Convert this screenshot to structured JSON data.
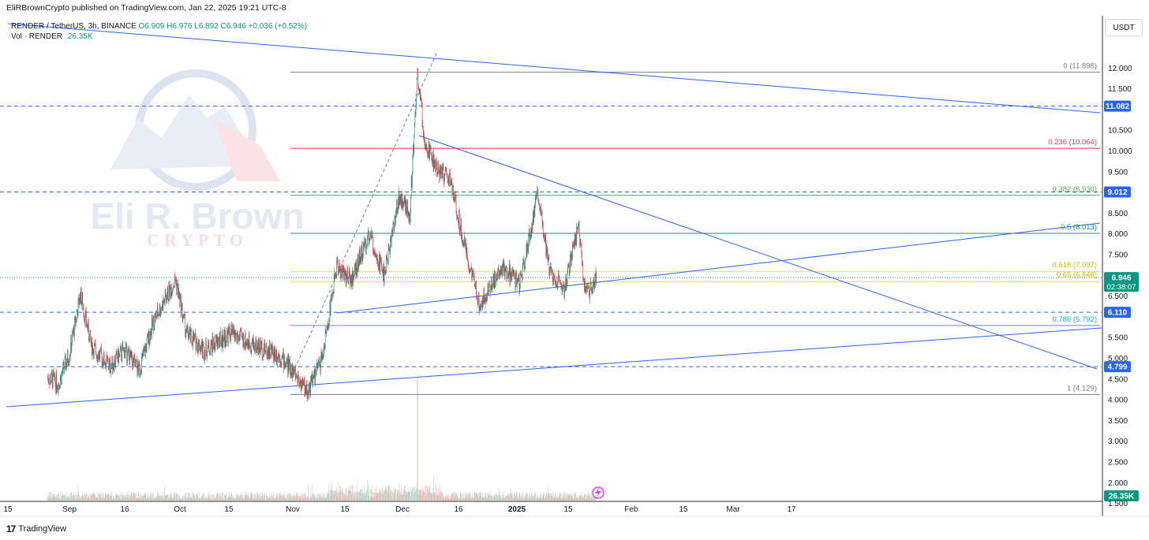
{
  "header": {
    "publisher": "EliRBrownCrypto published on TradingView.com, Jan 22, 2025 19:21 UTC-8"
  },
  "symbol": {
    "name": "RENDER / TetherUS, 3h, BINANCE",
    "ohlc": "O6.909 H6.976 L6.892 C6.946 +0.036 (+0.52%)",
    "volume_label": "Vol · RENDER",
    "volume_value": "26.35K"
  },
  "currency_label": "USDT",
  "footer": {
    "logo": "17",
    "brand": "TradingView"
  },
  "watermark": {
    "line1": "Eli R. Brown",
    "line2": "CRYPTO"
  },
  "colors": {
    "up": "#089981",
    "down": "#f23645",
    "trend": "#2962ff",
    "fib_0": "#787b86",
    "fib_236": "#f23645",
    "fib_382": "#4caf50",
    "fib_5": "#089981",
    "fib_618": "#f7e600",
    "fib_786": "#00bcd4",
    "fib_1": "#787b86"
  },
  "chart_data": {
    "type": "candlestick",
    "symbol": "RENDER / TetherUS",
    "interval": "3h",
    "exchange": "BINANCE",
    "y_range": [
      1.2,
      12.5
    ],
    "y_ticks": [
      "12.000",
      "11.500",
      "10.500",
      "10.000",
      "9.500",
      "8.500",
      "8.000",
      "7.500",
      "6.500",
      "5.500",
      "5.000",
      "4.500",
      "4.000",
      "3.500",
      "3.000",
      "2.500",
      "2.000",
      "1.500"
    ],
    "x_ticks": [
      "15",
      "Sep",
      "16",
      "Oct",
      "15",
      "Nov",
      "15",
      "Dec",
      "16",
      "2025",
      "15",
      "Feb",
      "15",
      "Mar",
      "17"
    ],
    "price_path": [
      [
        "2024-08-26",
        4.55
      ],
      [
        "2024-08-29",
        4.4
      ],
      [
        "2024-09-01",
        5.1
      ],
      [
        "2024-09-04",
        6.55
      ],
      [
        "2024-09-07",
        5.3
      ],
      [
        "2024-09-12",
        4.8
      ],
      [
        "2024-09-16",
        5.2
      ],
      [
        "2024-09-20",
        4.7
      ],
      [
        "2024-09-24",
        5.9
      ],
      [
        "2024-09-30",
        6.9
      ],
      [
        "2024-10-03",
        5.6
      ],
      [
        "2024-10-08",
        5.2
      ],
      [
        "2024-10-15",
        5.6
      ],
      [
        "2024-10-22",
        5.3
      ],
      [
        "2024-10-28",
        5.1
      ],
      [
        "2024-11-01",
        4.7
      ],
      [
        "2024-11-05",
        4.2
      ],
      [
        "2024-11-09",
        5.0
      ],
      [
        "2024-11-13",
        7.2
      ],
      [
        "2024-11-17",
        6.9
      ],
      [
        "2024-11-22",
        8.0
      ],
      [
        "2024-11-26",
        7.0
      ],
      [
        "2024-11-30",
        8.9
      ],
      [
        "2024-12-03",
        8.5
      ],
      [
        "2024-12-05",
        11.898
      ],
      [
        "2024-12-07",
        10.3
      ],
      [
        "2024-12-10",
        9.6
      ],
      [
        "2024-12-14",
        9.3
      ],
      [
        "2024-12-19",
        7.3
      ],
      [
        "2024-12-22",
        6.3
      ],
      [
        "2024-12-28",
        7.2
      ],
      [
        "2025-01-02",
        6.8
      ],
      [
        "2025-01-07",
        9.0
      ],
      [
        "2025-01-10",
        7.2
      ],
      [
        "2025-01-14",
        6.6
      ],
      [
        "2025-01-18",
        8.2
      ],
      [
        "2025-01-20",
        6.5
      ],
      [
        "2025-01-23",
        6.946
      ]
    ],
    "volume_peak_date": "2024-12-05",
    "fibonacci": [
      {
        "label": "0 (11.898)",
        "price": 11.898,
        "color": "#787b86"
      },
      {
        "label": "0.236 (10.064)",
        "price": 10.064,
        "color": "#f23645"
      },
      {
        "label": "0.382 (8.930)",
        "price": 8.93,
        "color": "#4caf50"
      },
      {
        "label": "0.5 (8.013)",
        "price": 8.013,
        "color": "#089981"
      },
      {
        "label": "0.618 (7.097)",
        "price": 7.097,
        "color": "#f7e600"
      },
      {
        "label": "0.65 (6.848)",
        "price": 6.848,
        "color": "#f7e600"
      },
      {
        "label": "0.786 (5.792)",
        "price": 5.792,
        "color": "#00bcd4"
      },
      {
        "label": "1 (4.129)",
        "price": 4.129,
        "color": "#787b86"
      }
    ],
    "horizontal_levels": [
      {
        "label": "11.082",
        "price": 11.082
      },
      {
        "label": "9.012",
        "price": 9.012
      },
      {
        "label": "6.110",
        "price": 6.11
      },
      {
        "label": "4.799",
        "price": 4.799
      }
    ],
    "current_price": {
      "label": "6.946",
      "countdown": "02:38:07",
      "price": 6.946
    },
    "volume_badge": "26.35K"
  }
}
